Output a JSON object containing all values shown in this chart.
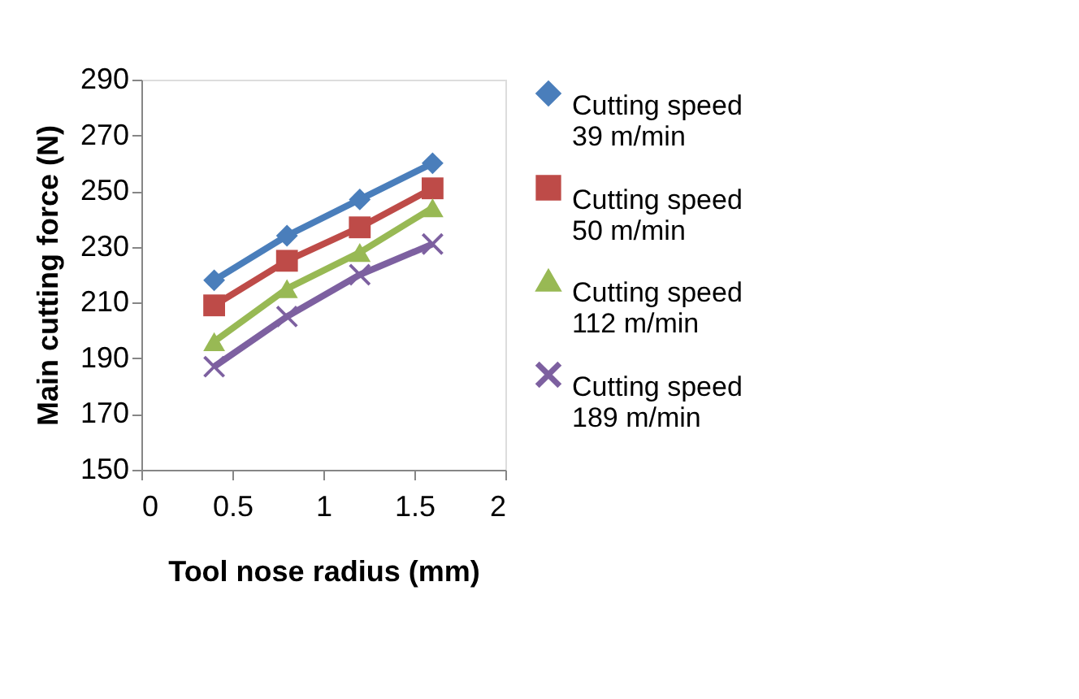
{
  "chart_data": {
    "type": "line",
    "xlabel": "Tool nose radius (mm)",
    "ylabel": "Main cutting force (N)",
    "x": [
      0.4,
      0.8,
      1.2,
      1.6
    ],
    "series": [
      {
        "name": "Cutting speed\n39 m/min",
        "color": "#4a7ebb",
        "marker": "diamond",
        "values": [
          218,
          234,
          247,
          260
        ]
      },
      {
        "name": "Cutting speed\n50 m/min",
        "color": "#be4b48",
        "marker": "square",
        "values": [
          209,
          225,
          237,
          251
        ]
      },
      {
        "name": "Cutting speed\n112 m/min",
        "color": "#98b954",
        "marker": "triangle",
        "values": [
          196,
          215,
          228,
          244
        ]
      },
      {
        "name": "Cutting speed\n189 m/min",
        "color": "#7d60a0",
        "marker": "cross",
        "values": [
          187,
          205,
          220,
          231
        ]
      }
    ],
    "xlim": [
      0,
      2
    ],
    "xticks": [
      0,
      0.5,
      1,
      1.5,
      2
    ],
    "ylim": [
      150,
      290
    ],
    "yticks": [
      150,
      170,
      190,
      210,
      230,
      250,
      270,
      290
    ],
    "grid": false,
    "legend": "right",
    "line_style": "solid"
  }
}
